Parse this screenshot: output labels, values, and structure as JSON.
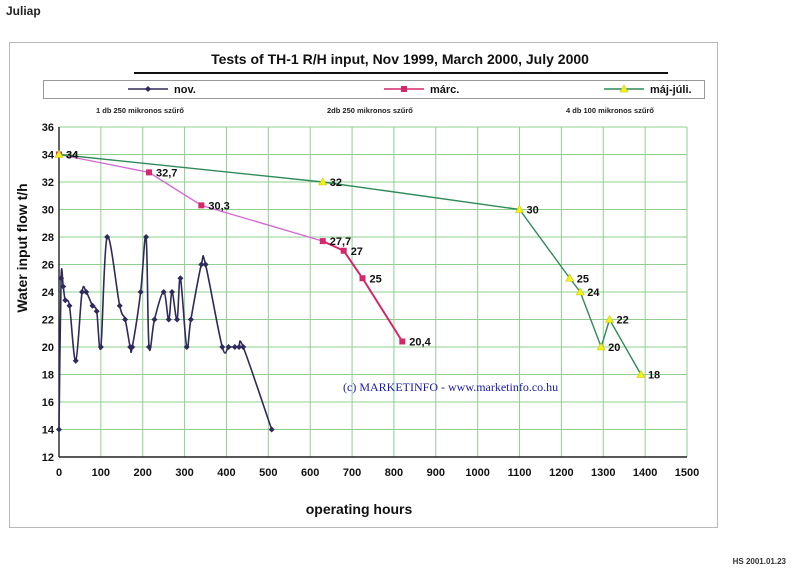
{
  "page": {
    "corner_label": "Juliap",
    "footer_code": "HS 2001.01.23",
    "watermark": "(c) MARKETINFO - www.marketinfo.co.hu"
  },
  "phase_notes": [
    "1 db 250 mikronos szűrő",
    "2db 250 mikronos szűrő",
    "4 db 100 mikronos szűrő"
  ],
  "colors": {
    "nov": "#2e2a5a",
    "marc": "#d4286a",
    "maj_juli": "#2f8a5a",
    "grid": "#8fd08f",
    "marker_yellow": "#f2f21a"
  },
  "chart_data": {
    "type": "line",
    "title": "Tests of TH-1 R/H input, Nov 1999, March 2000, July 2000",
    "xlabel": "operating  hours",
    "ylabel": "Water input flow   t/h",
    "xlim": [
      0,
      1500
    ],
    "ylim": [
      12,
      36
    ],
    "x_ticks": [
      0,
      100,
      200,
      300,
      400,
      500,
      600,
      700,
      800,
      900,
      1000,
      1100,
      1200,
      1300,
      1400,
      1500
    ],
    "y_ticks": [
      12,
      14,
      16,
      18,
      20,
      22,
      24,
      26,
      28,
      30,
      32,
      34,
      36
    ],
    "grid": true,
    "legend_position": "top",
    "series": [
      {
        "name": "nov.",
        "x": [
          0,
          5,
          10,
          15,
          25,
          40,
          55,
          65,
          80,
          90,
          100,
          115,
          145,
          158,
          170,
          175,
          195,
          208,
          215,
          228,
          250,
          262,
          270,
          282,
          290,
          305,
          315,
          340,
          350,
          390,
          405,
          420,
          430,
          440,
          508
        ],
        "values": [
          14,
          25,
          24.4,
          23.4,
          23,
          19,
          24,
          24,
          23,
          22.6,
          20,
          28,
          23,
          22,
          20,
          20,
          24,
          28,
          20,
          22,
          24,
          22,
          24,
          22,
          25,
          20,
          22,
          26,
          26,
          20,
          20,
          20,
          20,
          20,
          14
        ]
      },
      {
        "name": "márc.",
        "x": [
          0,
          215,
          340,
          630,
          680,
          725,
          820
        ],
        "values": [
          34,
          32.7,
          30.3,
          27.7,
          27,
          25,
          20.4
        ],
        "point_labels": [
          "34",
          "32,7",
          "30,3",
          "27,7",
          "27",
          "25",
          "20,4"
        ]
      },
      {
        "name": "máj-júli.",
        "x": [
          0,
          630,
          1100,
          1220,
          1245,
          1295,
          1315,
          1390
        ],
        "values": [
          34,
          32,
          30,
          25,
          24,
          20,
          22,
          18
        ],
        "point_labels": [
          "34",
          "32",
          "30",
          "25",
          "24",
          "20",
          "22",
          "18"
        ]
      }
    ]
  }
}
